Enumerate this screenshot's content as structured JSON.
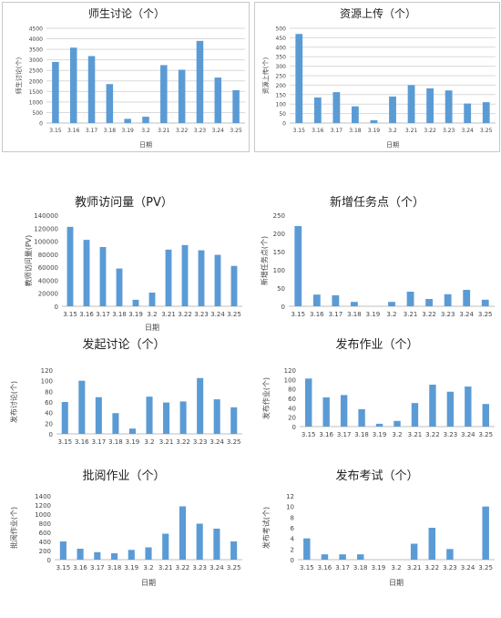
{
  "categories": [
    "3.15",
    "3.16",
    "3.17",
    "3.18",
    "3.19",
    "3.2",
    "3.21",
    "3.22",
    "3.23",
    "3.24",
    "3.25"
  ],
  "bar_color": "#5b9bd5",
  "chart_data": [
    {
      "type": "bar",
      "title": "师生讨论（个）",
      "xlabel": "日期",
      "ylabel": "师生讨论(个)",
      "yticks": [
        "0",
        "500",
        "1000",
        "1500",
        "2000",
        "2500",
        "3000",
        "3500",
        "4000",
        "4500"
      ],
      "ylim": [
        0,
        4500
      ],
      "categories": [
        "3.15",
        "3.16",
        "3.17",
        "3.18",
        "3.19",
        "3.2",
        "3.21",
        "3.22",
        "3.23",
        "3.24",
        "3.25"
      ],
      "values": [
        2900,
        3580,
        3180,
        1850,
        200,
        300,
        2750,
        2530,
        3900,
        2160,
        1560
      ]
    },
    {
      "type": "bar",
      "title": "资源上传（个）",
      "xlabel": "日期",
      "ylabel": "资源上传(个)",
      "yticks": [
        "0",
        "50",
        "100",
        "150",
        "200",
        "250",
        "300",
        "350",
        "400",
        "450",
        "500"
      ],
      "ylim": [
        0,
        500
      ],
      "categories": [
        "3.15",
        "3.16",
        "3.17",
        "3.18",
        "3.19",
        "3.2",
        "3.21",
        "3.22",
        "3.23",
        "3.24",
        "3.25"
      ],
      "values": [
        470,
        135,
        163,
        88,
        15,
        140,
        200,
        183,
        172,
        103,
        110
      ]
    },
    {
      "type": "bar",
      "title": "教师访问量（PV）",
      "xlabel": "日期",
      "ylabel": "教师访问量(PV)",
      "yticks": [
        "0",
        "20000",
        "40000",
        "60000",
        "80000",
        "100000",
        "120000",
        "140000"
      ],
      "ylim": [
        0,
        140000
      ],
      "categories": [
        "3.15",
        "3.16",
        "3.17",
        "3.18",
        "3.19",
        "3.2",
        "3.21",
        "3.22",
        "3.23",
        "3.24",
        "3.25"
      ],
      "values": [
        122000,
        102000,
        91000,
        58000,
        10000,
        21000,
        87000,
        94000,
        86000,
        79000,
        62000
      ]
    },
    {
      "type": "bar",
      "title": "新增任务点（个）",
      "xlabel": "日期",
      "ylabel": "新增任务点(个)",
      "yticks": [
        "0",
        "50",
        "100",
        "150",
        "200",
        "250"
      ],
      "ylim": [
        0,
        250
      ],
      "categories": [
        "3.15",
        "3.16",
        "3.17",
        "3.18",
        "3.19",
        "3.2",
        "3.21",
        "3.22",
        "3.23",
        "3.24",
        "3.25"
      ],
      "values": [
        220,
        32,
        30,
        12,
        0,
        12,
        40,
        20,
        33,
        45,
        18
      ]
    },
    {
      "type": "bar",
      "title": "发起讨论（个）",
      "xlabel": "",
      "ylabel": "发布讨论(个)",
      "yticks": [
        "0",
        "20",
        "40",
        "60",
        "80",
        "100",
        "120"
      ],
      "ylim": [
        0,
        120
      ],
      "categories": [
        "3.15",
        "3.16",
        "3.17",
        "3.18",
        "3.19",
        "3.2",
        "3.21",
        "3.22",
        "3.23",
        "3.24",
        "3.25"
      ],
      "values": [
        60,
        100,
        69,
        39,
        10,
        70,
        59,
        61,
        105,
        65,
        50
      ]
    },
    {
      "type": "bar",
      "title": "发布作业（个）",
      "xlabel": "",
      "ylabel": "发布作业(个)",
      "yticks": [
        "0",
        "20",
        "40",
        "60",
        "80",
        "100",
        "120"
      ],
      "ylim": [
        0,
        120
      ],
      "categories": [
        "3.15",
        "3.16",
        "3.17",
        "3.18",
        "3.19",
        "3.2",
        "3.21",
        "3.22",
        "3.23",
        "3.24",
        "3.25"
      ],
      "values": [
        102,
        62,
        67,
        37,
        6,
        12,
        50,
        89,
        74,
        85,
        48
      ]
    },
    {
      "type": "bar",
      "title": "批阅作业（个）",
      "xlabel": "日期",
      "ylabel": "批阅作业(个)",
      "yticks": [
        "0",
        "200",
        "400",
        "600",
        "800",
        "1000",
        "1200",
        "1400"
      ],
      "ylim": [
        0,
        1400
      ],
      "categories": [
        "3.15",
        "3.16",
        "3.17",
        "3.18",
        "3.19",
        "3.2",
        "3.21",
        "3.22",
        "3.23",
        "3.24",
        "3.25"
      ],
      "values": [
        400,
        240,
        165,
        140,
        215,
        270,
        570,
        1170,
        790,
        680,
        400
      ]
    },
    {
      "type": "bar",
      "title": "发布考试（个）",
      "xlabel": "日期",
      "ylabel": "发布考试(个)",
      "yticks": [
        "0",
        "2",
        "4",
        "6",
        "8",
        "10",
        "12"
      ],
      "ylim": [
        0,
        12
      ],
      "categories": [
        "3.15",
        "3.16",
        "3.17",
        "3.18",
        "3.19",
        "3.2",
        "3.21",
        "3.22",
        "3.23",
        "3.24",
        "3.25"
      ],
      "values": [
        4,
        1,
        1,
        1,
        0,
        0,
        3,
        6,
        2,
        0,
        10
      ]
    }
  ]
}
